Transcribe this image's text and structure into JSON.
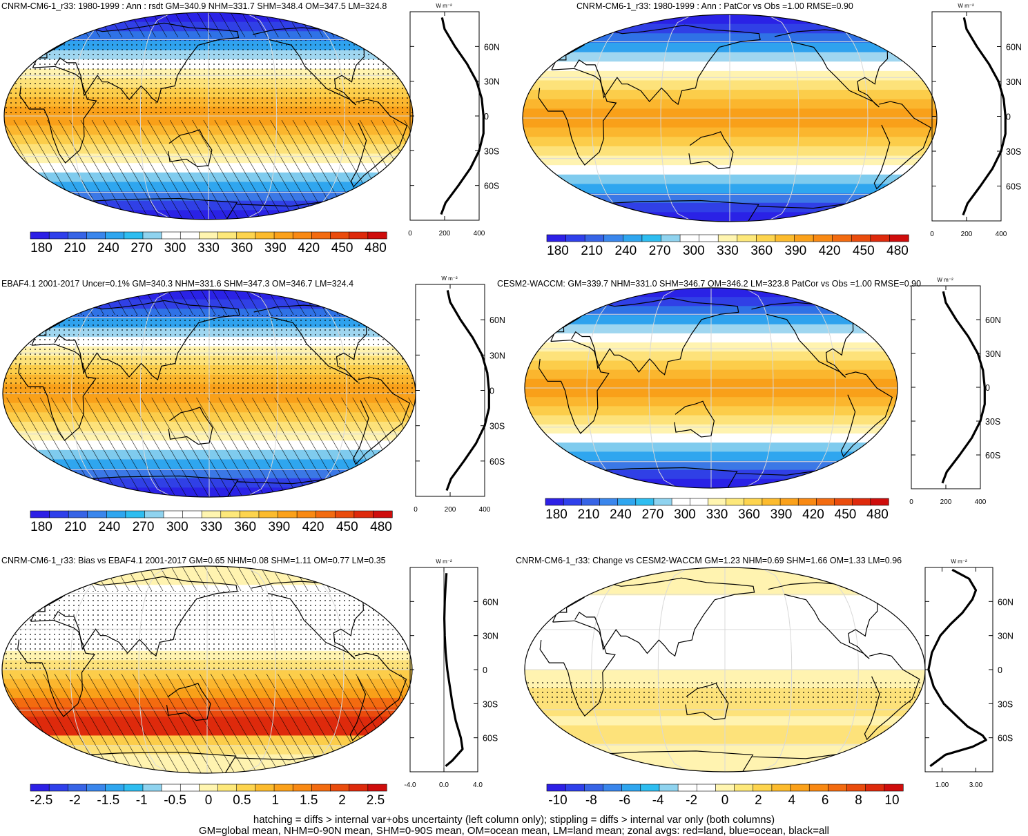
{
  "units_label": "W m⁻²",
  "zonal_lat_labels": [
    "60N",
    "30N",
    "0",
    "30S",
    "60S"
  ],
  "zonal_lat_values": [
    60,
    30,
    0,
    -30,
    -60
  ],
  "footer": {
    "line1": "hatching = diffs > internal var+obs uncertainty (left column only); stippling = diffs > internal var only (both columns)",
    "line2": "GM=global mean, NHM=0-90N mean, SHM=0-90S mean, OM=ocean mean, LM=land mean; zonal avgs: red=land, blue=ocean, black=all"
  },
  "colors": {
    "abs_scale": [
      "#2d20e6",
      "#2f40eb",
      "#3764e6",
      "#3a86ec",
      "#2fa6ef",
      "#2ebdf0",
      "#8fd3ef",
      "#ffffff",
      "#ffffff",
      "#fff5b0",
      "#fde87a",
      "#fdd44e",
      "#fcbb2d",
      "#fba11a",
      "#f98913",
      "#f36b10",
      "#ea4c0d",
      "#de2a0c",
      "#cf0d0c"
    ],
    "bias_scale": [
      "#2d20e6",
      "#2f40eb",
      "#3764e6",
      "#3a86ec",
      "#2fa6ef",
      "#2ebdf0",
      "#8fd3ef",
      "#ffffff",
      "#ffffff",
      "#fff5b0",
      "#fde87a",
      "#fdd44e",
      "#fcbb2d",
      "#fba11a",
      "#f98913",
      "#f36b10",
      "#ea4c0d",
      "#de2a0c",
      "#cf0d0c"
    ],
    "change_scale": [
      "#2d20e6",
      "#2f40eb",
      "#3764e6",
      "#3a86ec",
      "#2fa6ef",
      "#2ebdf0",
      "#8fd3ef",
      "#ffffff",
      "#ffffff",
      "#fff5b0",
      "#fde87a",
      "#fdd44e",
      "#fcbb2d",
      "#fba11a",
      "#f98913",
      "#f36b10",
      "#ea4c0d",
      "#de2a0c",
      "#cf0d0c"
    ]
  },
  "chart_data": [
    {
      "type": "heatmap",
      "title": "CNRM-CM6-1_r33: 1980-1999 : Ann : rsdt GM=340.9 NHM=331.7 SHM=348.4 OM=347.5 LM=324.8",
      "colorbar_labels": [
        "180",
        "210",
        "240",
        "270",
        "300",
        "330",
        "360",
        "390",
        "420",
        "450",
        "480"
      ],
      "zonal_profile": {
        "lat": [
          85,
          75,
          60,
          45,
          30,
          15,
          0,
          -15,
          -30,
          -45,
          -60,
          -75,
          -85
        ],
        "values": [
          185,
          200,
          260,
          330,
          385,
          415,
          425,
          425,
          400,
          350,
          280,
          205,
          180
        ]
      },
      "zonal_xlim": [
        0,
        400
      ],
      "zonal_xticks": [
        "0",
        "200",
        "400"
      ],
      "hatching": "diagonal",
      "stippling": true
    },
    {
      "type": "heatmap",
      "title": "CNRM-CM6-1_r33: 1980-1999 : Ann : PatCor vs Obs =1.00 RMSE=0.90",
      "colorbar_labels": [
        "180",
        "210",
        "240",
        "270",
        "300",
        "330",
        "360",
        "390",
        "420",
        "450",
        "480"
      ],
      "zonal_profile": {
        "lat": [
          85,
          75,
          60,
          45,
          30,
          15,
          0,
          -15,
          -30,
          -45,
          -60,
          -75,
          -85
        ],
        "values": [
          185,
          200,
          260,
          330,
          385,
          415,
          425,
          425,
          400,
          350,
          280,
          205,
          180
        ]
      },
      "zonal_xlim": [
        0,
        400
      ],
      "zonal_xticks": [
        "0",
        "200",
        "400"
      ],
      "hatching": "none",
      "stippling": false
    },
    {
      "type": "heatmap",
      "title": "EBAF4.1 2001-2017 Uncer=0.1% GM=340.3 NHM=331.6 SHM=347.3 OM=346.7 LM=324.4",
      "colorbar_labels": [
        "180",
        "210",
        "240",
        "270",
        "300",
        "330",
        "360",
        "390",
        "420",
        "450",
        "480"
      ],
      "zonal_profile": {
        "lat": [
          85,
          75,
          60,
          45,
          30,
          15,
          0,
          -15,
          -30,
          -45,
          -60,
          -75,
          -85
        ],
        "values": [
          185,
          200,
          260,
          330,
          385,
          415,
          425,
          425,
          400,
          350,
          280,
          205,
          180
        ]
      },
      "zonal_xlim": [
        0,
        400
      ],
      "zonal_xticks": [
        "0",
        "200",
        "400"
      ],
      "hatching": "diagonal",
      "stippling": true
    },
    {
      "type": "heatmap",
      "title": "CESM2-WACCM: GM=339.7 NHM=331.0 SHM=346.7 OM=346.2 LM=323.8 PatCor vs Obs =1.00 RMSE=0.90",
      "colorbar_labels": [
        "180",
        "210",
        "240",
        "270",
        "300",
        "330",
        "360",
        "390",
        "420",
        "450",
        "480"
      ],
      "zonal_profile": {
        "lat": [
          85,
          75,
          60,
          45,
          30,
          15,
          0,
          -15,
          -30,
          -45,
          -60,
          -75,
          -85
        ],
        "values": [
          185,
          200,
          260,
          330,
          385,
          415,
          425,
          425,
          400,
          350,
          280,
          205,
          180
        ]
      },
      "zonal_xlim": [
        0,
        400
      ],
      "zonal_xticks": [
        "0",
        "200",
        "400"
      ],
      "hatching": "none",
      "stippling": false
    },
    {
      "type": "heatmap",
      "title": "CNRM-CM6-1_r33: Bias vs EBAF4.1 2001-2017 GM=0.65 NHM=0.08 SHM=1.11 OM=0.77 LM=0.35",
      "colorbar_labels": [
        "-2.5",
        "-2",
        "-1.5",
        "-1",
        "-0.5",
        "0",
        "0.5",
        "1",
        "1.5",
        "2",
        "2.5"
      ],
      "zonal_profile": {
        "lat": [
          85,
          75,
          60,
          45,
          30,
          15,
          0,
          -15,
          -30,
          -45,
          -60,
          -70,
          -80,
          -85
        ],
        "values": [
          0.3,
          0.2,
          0.1,
          0.05,
          0.1,
          0.2,
          0.4,
          0.7,
          1.0,
          1.4,
          2.0,
          2.2,
          1.0,
          0.2
        ]
      },
      "zonal_xlim": [
        -4,
        4
      ],
      "zonal_xticks": [
        "-4.0",
        "0.0",
        "4.0"
      ],
      "hatching": "diagonal",
      "stippling": true
    },
    {
      "type": "heatmap",
      "title": "CNRM-CM6-1_r33: Change vs CESM2-WACCM GM=1.23 NHM=0.69 SHM=1.66 OM=1.33 LM=0.96",
      "colorbar_labels": [
        "-10",
        "-8",
        "-6",
        "-4",
        "-2",
        "0",
        "2",
        "4",
        "6",
        "8",
        "10"
      ],
      "zonal_profile": {
        "lat": [
          88,
          80,
          70,
          62,
          50,
          40,
          30,
          15,
          0,
          -15,
          -30,
          -40,
          -50,
          -58,
          -62,
          -68,
          -75,
          -85
        ],
        "values": [
          1.6,
          2.6,
          3.0,
          2.8,
          2.2,
          1.5,
          0.9,
          0.4,
          0.2,
          0.5,
          1.1,
          1.8,
          2.5,
          3.4,
          3.6,
          2.8,
          1.2,
          0.3
        ]
      },
      "zonal_xlim": [
        0,
        4
      ],
      "zonal_xticks": [
        "1.00",
        "3.00"
      ],
      "hatching": "none",
      "stippling": true
    }
  ]
}
